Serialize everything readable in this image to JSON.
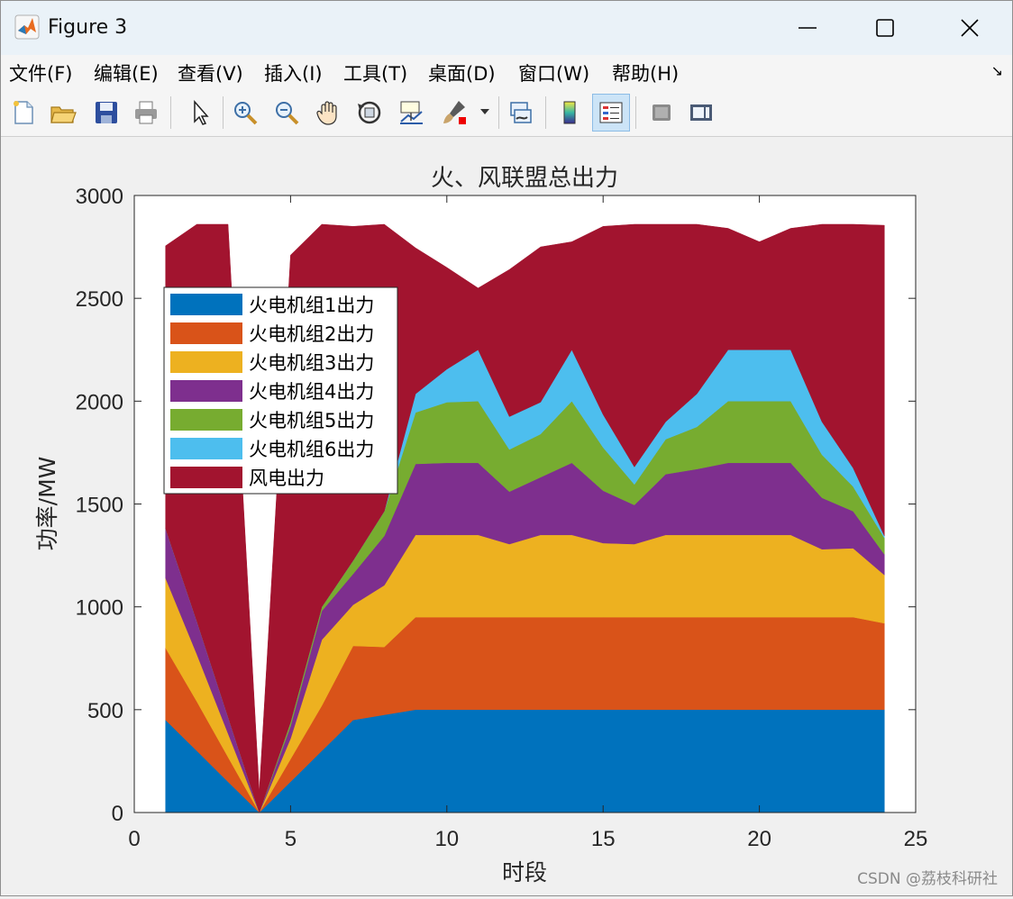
{
  "window": {
    "title": "Figure 3"
  },
  "menu": {
    "items": [
      "文件(F)",
      "编辑(E)",
      "查看(V)",
      "插入(I)",
      "工具(T)",
      "桌面(D)",
      "窗口(W)",
      "帮助(H)"
    ]
  },
  "toolbar": {
    "icons": [
      "new-figure-icon",
      "open-file-icon",
      "save-icon",
      "print-icon",
      "pointer-icon",
      "zoom-in-icon",
      "zoom-out-icon",
      "pan-icon",
      "rotate-3d-icon",
      "data-cursor-icon",
      "brush-icon",
      "link-plot-icon",
      "colorbar-icon",
      "legend-icon",
      "hide-plot-tools-icon",
      "show-plot-tools-icon"
    ]
  },
  "watermark": "CSDN @荔枝科研社",
  "chart_data": {
    "type": "area",
    "stacked": true,
    "title": "火、风联盟总出力",
    "xlabel": "时段",
    "ylabel": "功率/MW",
    "xlim": [
      0,
      25
    ],
    "ylim": [
      0,
      3000
    ],
    "xticks": [
      0,
      5,
      10,
      15,
      20,
      25
    ],
    "yticks": [
      0,
      500,
      1000,
      1500,
      2000,
      2500,
      3000
    ],
    "grid": false,
    "legend_position": "upper-left",
    "x": [
      1,
      2,
      3,
      4,
      5,
      6,
      7,
      8,
      9,
      10,
      11,
      12,
      13,
      14,
      15,
      16,
      17,
      18,
      19,
      20,
      21,
      22,
      23,
      24
    ],
    "series": [
      {
        "name": "火电机组1出力",
        "color": "#0072BD",
        "values": [
          450,
          300,
          150,
          0,
          150,
          300,
          450,
          475,
          500,
          500,
          500,
          500,
          500,
          500,
          500,
          500,
          500,
          500,
          500,
          500,
          500,
          500,
          500,
          500
        ]
      },
      {
        "name": "火电机组2出力",
        "color": "#D95319",
        "values": [
          350,
          240,
          120,
          0,
          110,
          220,
          360,
          330,
          450,
          450,
          450,
          450,
          450,
          450,
          450,
          450,
          450,
          450,
          450,
          450,
          450,
          450,
          450,
          420
        ]
      },
      {
        "name": "火电机组3出力",
        "color": "#EDB120",
        "values": [
          340,
          230,
          115,
          0,
          100,
          320,
          200,
          300,
          400,
          400,
          400,
          355,
          400,
          400,
          360,
          355,
          400,
          400,
          400,
          400,
          400,
          330,
          335,
          235
        ]
      },
      {
        "name": "火电机组4出力",
        "color": "#7E2F8E",
        "values": [
          240,
          160,
          80,
          0,
          60,
          140,
          150,
          240,
          345,
          350,
          350,
          255,
          280,
          350,
          255,
          190,
          295,
          320,
          350,
          350,
          350,
          250,
          180,
          100
        ]
      },
      {
        "name": "火电机组5出力",
        "color": "#77AC30",
        "values": [
          0,
          0,
          0,
          0,
          20,
          20,
          65,
          120,
          250,
          295,
          300,
          205,
          210,
          300,
          210,
          100,
          170,
          205,
          300,
          300,
          300,
          210,
          120,
          80
        ]
      },
      {
        "name": "火电机组6出力",
        "color": "#4DBEEE",
        "values": [
          0,
          0,
          0,
          0,
          0,
          0,
          0,
          0,
          90,
          160,
          250,
          160,
          155,
          250,
          160,
          85,
          85,
          160,
          250,
          250,
          250,
          160,
          90,
          10
        ]
      },
      {
        "name": "风电出力",
        "color": "#A2142F",
        "values": [
          1375,
          1930,
          2395,
          100,
          2270,
          1860,
          1625,
          1395,
          710,
          495,
          300,
          715,
          755,
          525,
          915,
          1180,
          960,
          825,
          590,
          525,
          590,
          960,
          1185,
          1510
        ]
      }
    ]
  }
}
